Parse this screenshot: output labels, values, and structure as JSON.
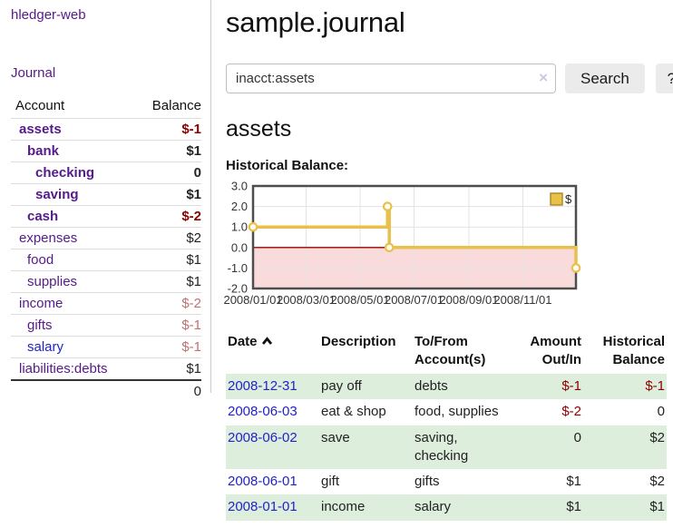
{
  "brand": "hledger-web",
  "nav": {
    "journal": "Journal"
  },
  "sidebar": {
    "columns": {
      "account": "Account",
      "balance": "Balance"
    },
    "accounts": [
      {
        "name": "assets",
        "balance": "$-1"
      },
      {
        "name": "bank",
        "balance": "$1"
      },
      {
        "name": "checking",
        "balance": "0"
      },
      {
        "name": "saving",
        "balance": "$1"
      },
      {
        "name": "cash",
        "balance": "$-2"
      },
      {
        "name": "expenses",
        "balance": "$2"
      },
      {
        "name": "food",
        "balance": "$1"
      },
      {
        "name": "supplies",
        "balance": "$1"
      },
      {
        "name": "income",
        "balance": "$-2"
      },
      {
        "name": "gifts",
        "balance": "$-1"
      },
      {
        "name": "salary",
        "balance": "$-1"
      },
      {
        "name": "liabilities:debts",
        "balance": "$1"
      }
    ],
    "total": "0"
  },
  "main": {
    "title": "sample.journal",
    "account_title": "assets",
    "chart_label": "Historical Balance:"
  },
  "search": {
    "value": "inacct:assets",
    "clear_icon": "×",
    "button_label": "Search",
    "help_label": "?"
  },
  "chart_data": {
    "type": "line",
    "style": "step-after",
    "title": "Historical Balance",
    "series": [
      {
        "name": "$",
        "points": [
          [
            "2008-01-01",
            1
          ],
          [
            "2008-06-01",
            2
          ],
          [
            "2008-06-03",
            0
          ],
          [
            "2008-12-31",
            -1
          ]
        ]
      }
    ],
    "x_ticks": [
      "2008/01/01",
      "2008/03/01",
      "2008/05/01",
      "2008/07/01",
      "2008/09/01",
      "2008/11/01"
    ],
    "y_ticks": [
      "3.0",
      "2.0",
      "1.0",
      "0.0",
      "-1.0",
      "-2.0"
    ],
    "xlim": [
      "2008-01-01",
      "2008-12-31"
    ],
    "ylim": [
      -2,
      3
    ],
    "grid": true,
    "legend": {
      "label": "$",
      "position": "top-right"
    },
    "negative_region_shaded": true,
    "zero_line": true
  },
  "register": {
    "headers": {
      "date": "Date",
      "description": "Description",
      "tofrom": "To/From Account(s)",
      "amount": "Amount Out/In",
      "balance": "Historical Balance"
    },
    "sort": {
      "column": "date",
      "direction": "ascending",
      "icon": "chevron-up"
    },
    "rows": [
      {
        "date": "2008-12-31",
        "description": "pay off",
        "accounts": "debts",
        "amount": "$-1",
        "balance": "$-1"
      },
      {
        "date": "2008-06-03",
        "description": "eat & shop",
        "accounts": "food, supplies",
        "amount": "$-2",
        "balance": "0"
      },
      {
        "date": "2008-06-02",
        "description": "save",
        "accounts": "saving, checking",
        "amount": "0",
        "balance": "$2"
      },
      {
        "date": "2008-06-01",
        "description": "gift",
        "accounts": "gifts",
        "amount": "$1",
        "balance": "$2"
      },
      {
        "date": "2008-01-01",
        "description": "income",
        "accounts": "salary",
        "amount": "$1",
        "balance": "$1"
      }
    ]
  },
  "colors": {
    "link_purple": "#551a8b",
    "link_blue": "#2222cc",
    "negative_strong": "#8b0000",
    "negative_soft": "#bf7171",
    "row_green": "#ddeedd",
    "chart_line_gold": "#e8c04a",
    "chart_negative_fill": "#fadbdb",
    "chart_zero_line": "#990000",
    "chart_border": "#4d4d4d",
    "legend_border": "#a8871f"
  }
}
